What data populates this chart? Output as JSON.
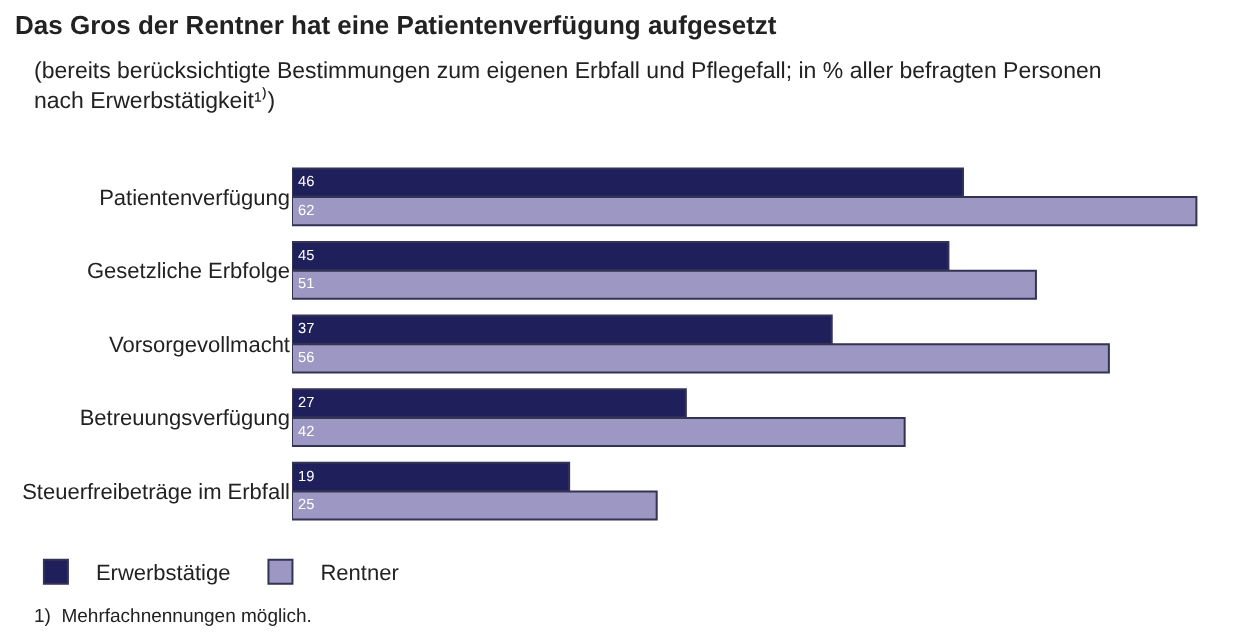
{
  "chart_data": {
    "type": "bar",
    "orientation": "horizontal",
    "title": "Das Gros der Rentner hat eine Patientenverfügung aufgesetzt",
    "subtitle": "(bereits berücksichtigte Bestimmungen zum eigenen Erbfall und Pflegefall; in % aller befragten Personen\nnach Erwerbstätigkeit¹⁾)",
    "categories": [
      "Patientenverfügung",
      "Gesetzliche Erbfolge",
      "Vorsorgevollmacht",
      "Betreuungsverfügung",
      "Steuerfreibeträge im Erbfall"
    ],
    "series": [
      {
        "name": "Erwerbstätige",
        "color": "#1f1f5c",
        "values": [
          46,
          45,
          37,
          27,
          19
        ]
      },
      {
        "name": "Rentner",
        "color": "#9d97c3",
        "values": [
          62,
          51,
          56,
          42,
          25
        ]
      }
    ],
    "tick_labels": "y",
    "data_labels": true,
    "legend": "bottom left",
    "annotations": [
      "1)  Mehrfachnennungen möglich."
    ]
  }
}
